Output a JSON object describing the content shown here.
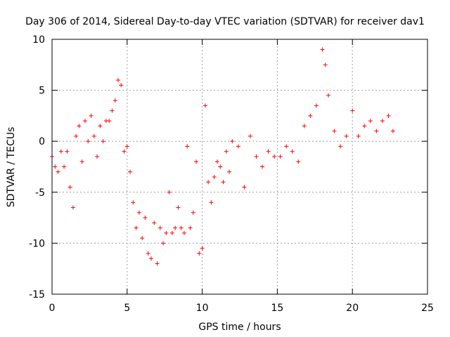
{
  "chart_data": {
    "type": "scatter",
    "title": "Day 306 of 2014, Sidereal Day-to-day VTEC variation (SDTVAR) for receiver dav1",
    "xlabel": "GPS time / hours",
    "ylabel": "SDTVAR / TECUs",
    "xlim": [
      0,
      25
    ],
    "ylim": [
      -15,
      10
    ],
    "xticks": [
      0,
      5,
      10,
      15,
      20,
      25
    ],
    "yticks": [
      -15,
      -10,
      -5,
      0,
      5,
      10
    ],
    "xtick_labels": [
      "0",
      "5",
      "10",
      "15",
      "20",
      "25"
    ],
    "ytick_labels": [
      "-15",
      "-10",
      "-5",
      "0",
      "5",
      "10"
    ],
    "grid": true,
    "marker": "+",
    "series": [
      {
        "name": "SDTVAR",
        "color": "#ff0000",
        "x": [
          0.0,
          0.2,
          0.4,
          0.6,
          0.8,
          1.0,
          1.2,
          1.4,
          1.6,
          1.8,
          2.0,
          2.2,
          2.4,
          2.6,
          2.8,
          3.0,
          3.2,
          3.4,
          3.6,
          3.8,
          4.0,
          4.2,
          4.4,
          4.6,
          4.8,
          5.0,
          5.2,
          5.4,
          5.6,
          5.8,
          6.0,
          6.2,
          6.4,
          6.6,
          6.8,
          7.0,
          7.2,
          7.4,
          7.6,
          7.8,
          8.0,
          8.2,
          8.4,
          8.6,
          8.8,
          9.0,
          9.2,
          9.4,
          9.6,
          9.8,
          10.0,
          10.2,
          10.4,
          10.6,
          10.8,
          11.0,
          11.2,
          11.4,
          11.6,
          11.8,
          12.0,
          12.4,
          12.8,
          13.2,
          13.6,
          14.0,
          14.4,
          14.8,
          15.2,
          15.6,
          16.0,
          16.4,
          16.8,
          17.2,
          17.6,
          18.0,
          18.2,
          18.4,
          18.8,
          19.2,
          19.6,
          20.0,
          20.4,
          20.8,
          21.2,
          21.6,
          22.0,
          22.4,
          22.7
        ],
        "y": [
          -1.5,
          -2.5,
          -3.0,
          -1.0,
          -2.5,
          -1.0,
          -4.5,
          -6.5,
          0.5,
          1.5,
          -2.0,
          2.0,
          0.0,
          2.5,
          0.5,
          -1.5,
          1.5,
          0.0,
          2.0,
          2.0,
          3.0,
          4.0,
          6.0,
          5.5,
          -1.0,
          -0.5,
          -3.0,
          -6.0,
          -8.5,
          -7.0,
          -9.5,
          -7.5,
          -11.0,
          -11.5,
          -8.0,
          -12.0,
          -8.5,
          -10.0,
          -9.0,
          -5.0,
          -9.0,
          -8.5,
          -6.5,
          -8.5,
          -9.0,
          -0.5,
          -8.5,
          -7.0,
          -2.0,
          -11.0,
          -10.5,
          3.5,
          -4.0,
          -6.0,
          -3.5,
          -2.0,
          -2.5,
          -4.0,
          -1.0,
          -3.0,
          0.0,
          -0.5,
          -4.5,
          0.5,
          -1.5,
          -2.5,
          -1.0,
          -1.5,
          -1.5,
          -0.5,
          -1.0,
          -2.0,
          1.5,
          2.5,
          3.5,
          9.0,
          7.5,
          4.5,
          1.0,
          -0.5,
          0.5,
          3.0,
          0.5,
          1.5,
          2.0,
          1.0,
          2.0,
          2.5,
          1.0
        ]
      }
    ]
  }
}
